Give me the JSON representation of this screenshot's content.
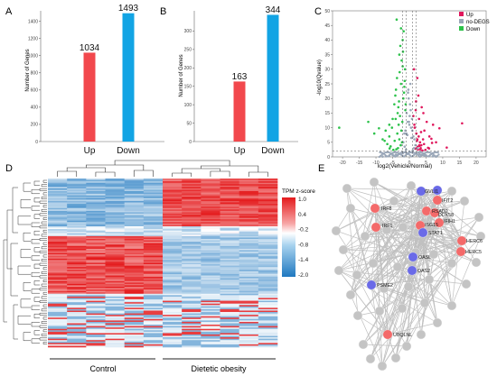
{
  "panels": {
    "a": {
      "letter": "A"
    },
    "b": {
      "letter": "B"
    },
    "c": {
      "letter": "C"
    },
    "d": {
      "letter": "D"
    },
    "e": {
      "letter": "E"
    }
  },
  "colors": {
    "up": "#f2484d",
    "down": "#12a4e4",
    "nodeg": "#9aa7b8",
    "volcano_down": "#2cc24a",
    "volcano_up": "#e0175c",
    "heat_high": "#e41a1c",
    "heat_mid": "#ffffff",
    "heat_low": "#1f78c0",
    "net_edge": "#c0c0c0",
    "net_node": "#c4c4c4",
    "net_red": "#f46a6a",
    "net_blue": "#6a6ae8"
  },
  "chart_data": [
    {
      "type": "bar",
      "panel": "A",
      "ylabel": "Number of Genes",
      "ylim": [
        0,
        1500
      ],
      "yticks": [
        0,
        200,
        400,
        600,
        800,
        1000,
        1200,
        1400
      ],
      "categories": [
        "Up",
        "Down"
      ],
      "values": [
        1034,
        1493
      ]
    },
    {
      "type": "bar",
      "panel": "B",
      "ylabel": "Number of Genes",
      "ylim": [
        0,
        350
      ],
      "yticks": [
        0,
        50,
        100,
        150,
        200,
        250,
        300
      ],
      "categories": [
        "Up",
        "Down"
      ],
      "values": [
        163,
        344
      ]
    },
    {
      "type": "scatter",
      "panel": "C",
      "xlabel": "log2(Vehicle/Normal)",
      "ylabel": "-log10(Qvalue)",
      "xlim": [
        -23,
        23
      ],
      "ylim": [
        0,
        50
      ],
      "xticks": [
        -20,
        -15,
        -10,
        -5,
        0,
        5,
        10,
        15,
        20
      ],
      "yticks": [
        0,
        5,
        10,
        15,
        20,
        25,
        30,
        35,
        40,
        45,
        50
      ],
      "thresholds": {
        "x": [
          -2,
          -1,
          1,
          2
        ],
        "y": 2
      },
      "legend": [
        "Up",
        "no-DEGS",
        "Down"
      ],
      "legend_position": "top-right",
      "series": [
        {
          "name": "Up",
          "color_key": "volcano_up",
          "x": [
            1.2,
            1.6,
            2.1,
            2.4,
            2.8,
            3.2,
            3.6,
            4.1,
            4.5,
            5.2,
            6.0,
            7.1,
            8.0,
            2.2,
            2.6,
            3.0,
            3.4,
            3.9,
            1.8,
            2.5,
            3.3,
            4.4,
            5.6,
            6.6,
            2.9,
            3.7,
            2.0,
            1.5,
            4.8,
            5.9,
            3.1,
            2.3,
            1.9,
            2.7,
            3.5,
            4.2,
            15.8,
            11.2,
            9.0,
            6.8,
            2.4,
            1.4
          ],
          "y": [
            14,
            10,
            8,
            6,
            7,
            5,
            4,
            6,
            9,
            12,
            7,
            11,
            5,
            3,
            2.5,
            4,
            3,
            2.2,
            2.8,
            3.5,
            2.6,
            4.4,
            3.1,
            6.2,
            13,
            17,
            19,
            11,
            2.4,
            2.9,
            3.8,
            5.5,
            16,
            21,
            8.5,
            15,
            11.5,
            3.2,
            9.8,
            4.8,
            27,
            30
          ]
        },
        {
          "name": "no-DEGS",
          "color_key": "nodeg",
          "x": [
            -6,
            -5,
            -4,
            -3,
            -2,
            -1,
            0,
            1,
            2,
            3,
            4,
            5,
            6,
            -2.5,
            -1.5,
            -0.5,
            0.5,
            1.5,
            2.5,
            -3.5,
            3.5,
            -4.5,
            4.5,
            -0.8,
            0.8,
            -1.2,
            1.2,
            0.2,
            -0.2,
            -7,
            7,
            -8,
            8,
            -1.8,
            1.8,
            -0.4,
            0.4,
            0.0,
            -1.0,
            1.0,
            0.6,
            -0.6,
            -2.2,
            2.2,
            0.3,
            -0.3,
            0.1,
            -0.1,
            1.4,
            -1.4,
            0.9,
            -0.9
          ],
          "y": [
            0.4,
            0.6,
            0.8,
            1.0,
            1.2,
            1.5,
            1.8,
            1.4,
            1.1,
            0.9,
            0.7,
            0.5,
            0.3,
            4,
            8,
            12,
            10,
            6,
            3,
            0.6,
            0.7,
            0.3,
            0.4,
            15,
            13,
            9,
            7,
            18,
            20,
            0.2,
            0.2,
            0.1,
            0.1,
            5,
            4,
            22,
            16,
            11,
            2.5,
            2.2,
            6.5,
            7.5,
            1.6,
            1.3,
            25,
            23,
            14,
            12,
            3,
            3.5,
            9,
            8
          ]
        },
        {
          "name": "Down",
          "color_key": "volcano_down",
          "x": [
            -1.2,
            -1.6,
            -2.1,
            -2.4,
            -2.8,
            -3.2,
            -3.6,
            -4.1,
            -4.5,
            -5.2,
            -6.0,
            -7.1,
            -8.0,
            -2.2,
            -2.6,
            -3.0,
            -3.4,
            -3.9,
            -1.8,
            -2.5,
            -3.3,
            -4.4,
            -5.6,
            -6.6,
            -2.9,
            -3.7,
            -2.0,
            -1.5,
            -4.8,
            -5.9,
            -3.1,
            -2.3,
            -1.9,
            -2.7,
            -3.5,
            -4.2,
            -10.5,
            -12.3,
            -9.1,
            -7.4,
            -1.4,
            -1.1,
            -2.0,
            -3.0,
            -4.0,
            -5.0,
            -6.0,
            -2.5,
            -1.7,
            -3.8,
            -21.0,
            -1.3
          ],
          "y": [
            16,
            22,
            12,
            9,
            14,
            11,
            8,
            13,
            18,
            10,
            7,
            9,
            6,
            5,
            4,
            6,
            3,
            2.6,
            20,
            25,
            17,
            5.5,
            3.6,
            4.4,
            29,
            27,
            31,
            24,
            2.4,
            2.9,
            19,
            33,
            36,
            38,
            15,
            21,
            8,
            12,
            9.8,
            5.5,
            26,
            18,
            40,
            35,
            23,
            13,
            11,
            44,
            43,
            47,
            10,
            30
          ]
        }
      ]
    },
    {
      "type": "heatmap",
      "panel": "D",
      "colorbar_title": "TPM z-score",
      "colorbar_ticks": [
        "1.0",
        "0.4",
        "-0.2",
        "-0.8",
        "-1.4",
        "-2.0"
      ],
      "groups": [
        "Control",
        "Dietetic obesity"
      ],
      "n_columns": 12,
      "blocks": [
        {
          "row_fraction": 0.28,
          "pattern": "control_low_obesity_high"
        },
        {
          "row_fraction": 0.06,
          "pattern": "mixed_pale"
        },
        {
          "row_fraction": 0.34,
          "pattern": "control_high_obesity_low"
        },
        {
          "row_fraction": 0.32,
          "pattern": "mixed_patchy"
        }
      ]
    }
  ],
  "network": {
    "labels": {
      "irf8": "IRF8",
      "irf1": "IRF1",
      "gvi": "GVLI1",
      "ifit2": "IFIT2",
      "rsad2": "RSAD2",
      "ddx58": "DDX58",
      "ifih1": "IFIH1",
      "isg": "ISG15",
      "stat1": "STAT1",
      "oasl": "OASL",
      "oas2": "OAS2",
      "herc6": "HERC6",
      "herc5": "HERC5",
      "mx": "PSME2",
      "ubqlnl": "UBQLNL"
    }
  }
}
